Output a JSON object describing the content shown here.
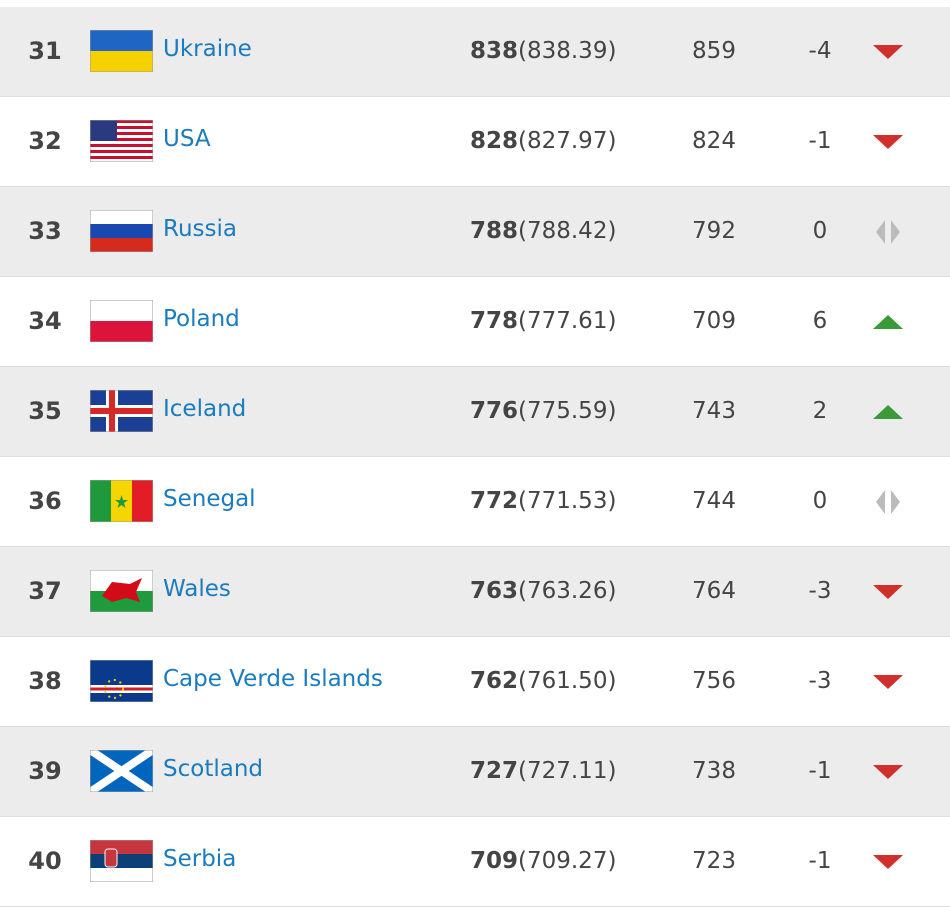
{
  "table": {
    "rows": [
      {
        "rank": "31",
        "name": "Ukraine",
        "points": "838",
        "points_precise": "(838.39)",
        "previous": "859",
        "change": "-4",
        "trend": "down"
      },
      {
        "rank": "32",
        "name": "USA",
        "points": "828",
        "points_precise": "(827.97)",
        "previous": "824",
        "change": "-1",
        "trend": "down"
      },
      {
        "rank": "33",
        "name": "Russia",
        "points": "788",
        "points_precise": "(788.42)",
        "previous": "792",
        "change": "0",
        "trend": "same"
      },
      {
        "rank": "34",
        "name": "Poland",
        "points": "778",
        "points_precise": "(777.61)",
        "previous": "709",
        "change": "6",
        "trend": "up"
      },
      {
        "rank": "35",
        "name": "Iceland",
        "points": "776",
        "points_precise": "(775.59)",
        "previous": "743",
        "change": "2",
        "trend": "up"
      },
      {
        "rank": "36",
        "name": "Senegal",
        "points": "772",
        "points_precise": "(771.53)",
        "previous": "744",
        "change": "0",
        "trend": "same"
      },
      {
        "rank": "37",
        "name": "Wales",
        "points": "763",
        "points_precise": "(763.26)",
        "previous": "764",
        "change": "-3",
        "trend": "down"
      },
      {
        "rank": "38",
        "name": "Cape Verde Islands",
        "points": "762",
        "points_precise": "(761.50)",
        "previous": "756",
        "change": "-3",
        "trend": "down"
      },
      {
        "rank": "39",
        "name": "Scotland",
        "points": "727",
        "points_precise": "(727.11)",
        "previous": "738",
        "change": "-1",
        "trend": "down"
      },
      {
        "rank": "40",
        "name": "Serbia",
        "points": "709",
        "points_precise": "(709.27)",
        "previous": "723",
        "change": "-1",
        "trend": "down"
      }
    ]
  }
}
